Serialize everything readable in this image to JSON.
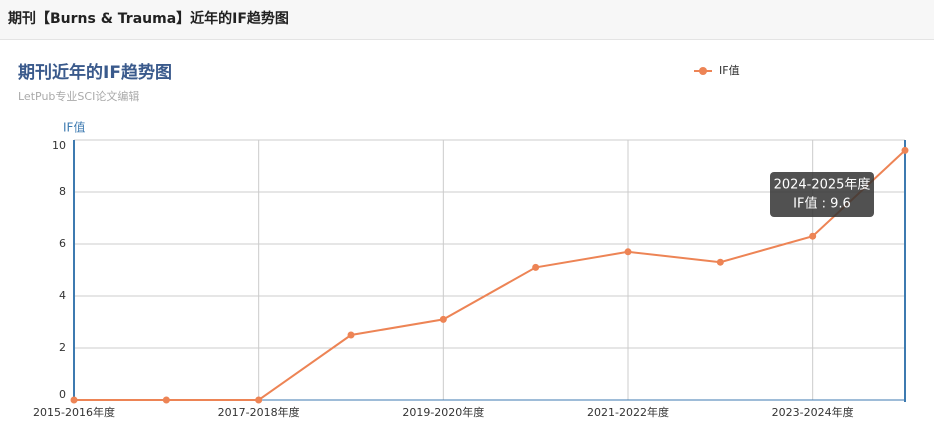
{
  "header": {
    "title": "期刊【Burns & Trauma】近年的IF趋势图"
  },
  "chart_data": {
    "type": "line",
    "title": "期刊近年的IF趋势图",
    "subtitle": "LetPub专业SCI论文编辑",
    "y_label": "IF值",
    "categories": [
      "2015-2016年度",
      null,
      "2017-2018年度",
      null,
      "2019-2020年度",
      null,
      "2021-2022年度",
      null,
      "2023-2024年度",
      null
    ],
    "series": [
      {
        "name": "IF值",
        "color": "#ed8455",
        "values": [
          0,
          0,
          0,
          2.5,
          3.1,
          5.1,
          5.7,
          5.3,
          6.3,
          9.6
        ]
      }
    ],
    "ylim": [
      0,
      10
    ],
    "yticks": [
      0,
      2,
      4,
      6,
      8,
      10
    ],
    "grid": true,
    "legend": "top-right",
    "tooltip": {
      "title": "2024-2025年度",
      "text": "IF值 : 9.6"
    }
  }
}
